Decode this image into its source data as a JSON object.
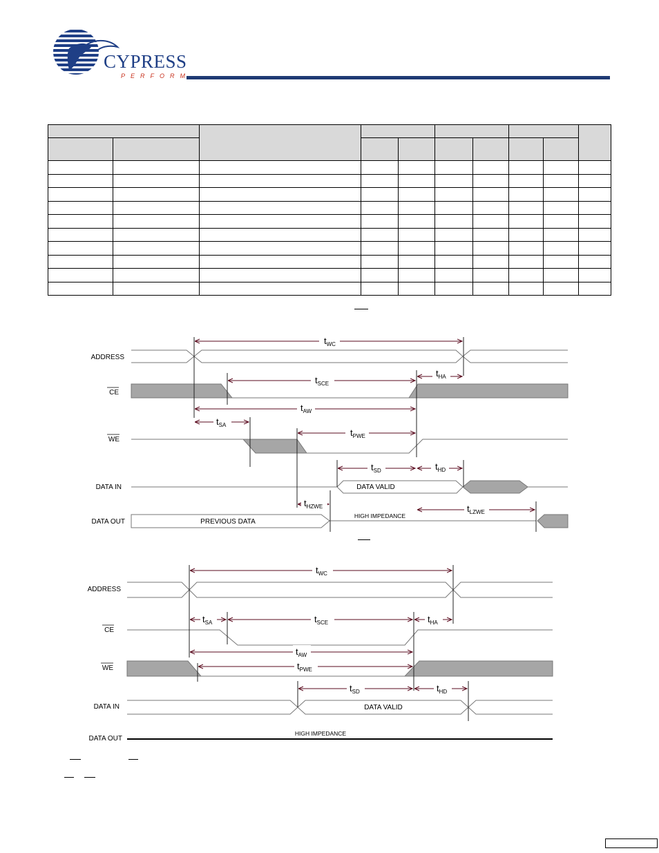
{
  "brand": {
    "name": "CYPRESS",
    "tagline": "PERFORM",
    "colors": {
      "blue": "#1f3f86",
      "red": "#c8321e",
      "rule": "#1f3a74"
    }
  },
  "table": {
    "body_rows": 10
  },
  "diagram1": {
    "signals": {
      "address": "ADDRESS",
      "ce": "CE",
      "we": "WE",
      "data_in": "DATA IN",
      "data_out": "DATA OUT"
    },
    "timings": {
      "wc": [
        "t",
        "WC"
      ],
      "sce": [
        "t",
        "SCE"
      ],
      "ha": [
        "t",
        "HA"
      ],
      "aw": [
        "t",
        "AW"
      ],
      "sa": [
        "t",
        "SA"
      ],
      "pwe": [
        "t",
        "PWE"
      ],
      "sd": [
        "t",
        "SD"
      ],
      "hd": [
        "t",
        "HD"
      ],
      "hzwe": [
        "t",
        "HZWE"
      ],
      "lzwe": [
        "t",
        "LZWE"
      ]
    },
    "labels": {
      "data_valid": "DATA VALID",
      "high_impedance": "HIGH IMPEDANCE",
      "previous_data": "PREVIOUS DATA"
    },
    "fill_color": "#a6a6a6"
  },
  "diagram2": {
    "signals": {
      "address": "ADDRESS",
      "ce": "CE",
      "we": "WE",
      "data_in": "DATA IN",
      "data_out": "DATA OUT"
    },
    "timings": {
      "wc": [
        "t",
        "WC"
      ],
      "sa": [
        "t",
        "SA"
      ],
      "sce": [
        "t",
        "SCE"
      ],
      "ha": [
        "t",
        "HA"
      ],
      "aw": [
        "t",
        "AW"
      ],
      "pwe": [
        "t",
        "PWE"
      ],
      "sd": [
        "t",
        "SD"
      ],
      "hd": [
        "t",
        "HD"
      ]
    },
    "labels": {
      "data_valid": "DATA VALID",
      "high_impedance": "HIGH IMPEDANCE"
    }
  }
}
